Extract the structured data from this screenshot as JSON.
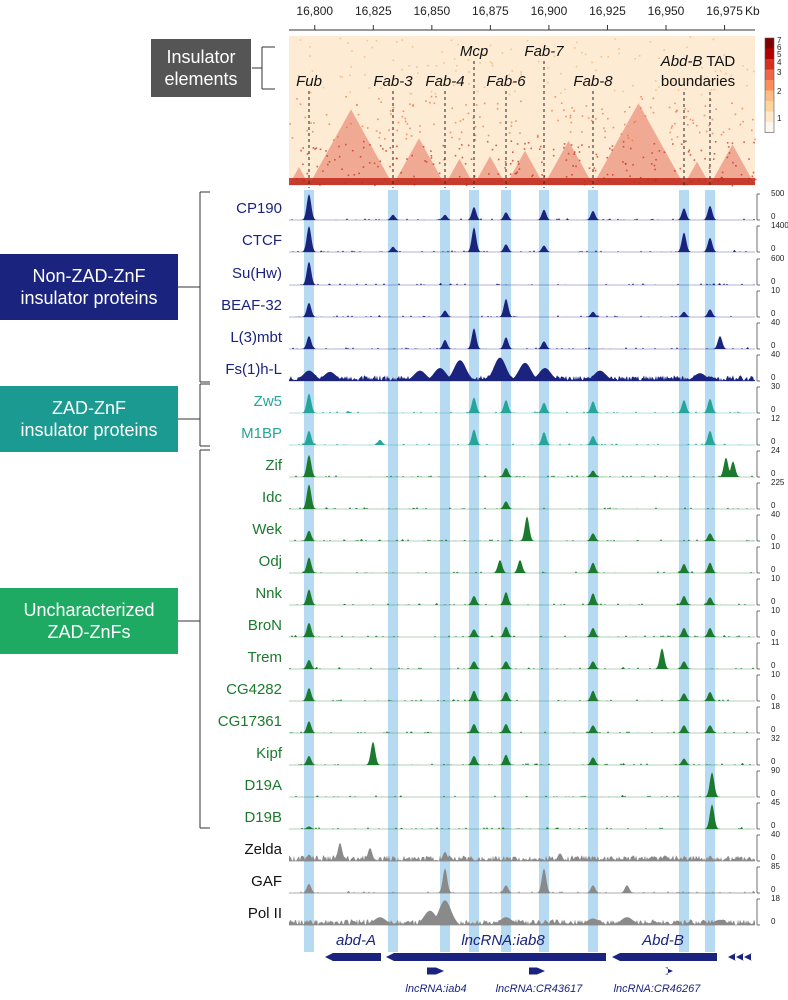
{
  "axis": {
    "unit": "Kb",
    "ticks": [
      {
        "label": "16,800",
        "value": 16800
      },
      {
        "label": "16,825",
        "value": 16825
      },
      {
        "label": "16,850",
        "value": 16850
      },
      {
        "label": "16,875",
        "value": 16875
      },
      {
        "label": "16,900",
        "value": 16900
      },
      {
        "label": "16,925",
        "value": 16925
      },
      {
        "label": "16,950",
        "value": 16950
      },
      {
        "label": "16,975",
        "value": 16975
      }
    ]
  },
  "insulator_box": {
    "label_line1": "Insulator",
    "label_line2": "elements",
    "color": "#555555"
  },
  "hic_scale": {
    "ticks": [
      "7",
      "6",
      "5",
      "4",
      "3",
      "2",
      "1"
    ]
  },
  "elements": [
    {
      "name": "Fub",
      "italic": true
    },
    {
      "name": "Fab-3",
      "italic": true
    },
    {
      "name": "Fab-4",
      "italic": true
    },
    {
      "name": "Mcp",
      "italic": true
    },
    {
      "name": "Fab-6",
      "italic": true
    },
    {
      "name": "Fab-7",
      "italic": true
    },
    {
      "name": "Fab-8",
      "italic": true
    }
  ],
  "tad_label": {
    "gene": "Abd-B",
    "rest": " TAD",
    "line2": "boundaries"
  },
  "groups": [
    {
      "id": "non-zad",
      "line1": "Non-ZAD-ZnF",
      "line2": "insulator proteins",
      "color": "#1a237e"
    },
    {
      "id": "zad",
      "line1": "ZAD-ZnF",
      "line2": "insulator proteins",
      "color": "#1a9a90"
    },
    {
      "id": "uncharacterized",
      "line1": "Uncharacterized",
      "line2": "ZAD-ZnFs",
      "color": "#1faa63"
    }
  ],
  "tracks": [
    {
      "name": "CP190",
      "max": "500",
      "min": "0",
      "color": "#1a237e"
    },
    {
      "name": "CTCF",
      "max": "1400",
      "min": "0",
      "color": "#1a237e"
    },
    {
      "name": "Su(Hw)",
      "max": "600",
      "min": "0",
      "color": "#1a237e"
    },
    {
      "name": "BEAF-32",
      "max": "10",
      "min": "0",
      "color": "#1a237e"
    },
    {
      "name": "L(3)mbt",
      "max": "40",
      "min": "0",
      "color": "#1a237e"
    },
    {
      "name": "Fs(1)h-L",
      "max": "40",
      "min": "0",
      "color": "#1a237e"
    },
    {
      "name": "Zw5",
      "max": "30",
      "min": "0",
      "color": "#26a69a"
    },
    {
      "name": "M1BP",
      "max": "12",
      "min": "0",
      "color": "#26a69a"
    },
    {
      "name": "Zif",
      "max": "24",
      "min": "0",
      "color": "#1b7a2e"
    },
    {
      "name": "Idc",
      "max": "225",
      "min": "0",
      "color": "#1b7a2e"
    },
    {
      "name": "Wek",
      "max": "40",
      "min": "0",
      "color": "#1b7a2e"
    },
    {
      "name": "Odj",
      "max": "10",
      "min": "0",
      "color": "#1b7a2e"
    },
    {
      "name": "Nnk",
      "max": "10",
      "min": "0",
      "color": "#1b7a2e"
    },
    {
      "name": "BroN",
      "max": "10",
      "min": "0",
      "color": "#1b7a2e"
    },
    {
      "name": "Trem",
      "max": "11",
      "min": "0",
      "color": "#1b7a2e"
    },
    {
      "name": "CG4282",
      "max": "10",
      "min": "0",
      "color": "#1b7a2e"
    },
    {
      "name": "CG17361",
      "max": "18",
      "min": "0",
      "color": "#1b7a2e"
    },
    {
      "name": "Kipf",
      "max": "32",
      "min": "0",
      "color": "#1b7a2e"
    },
    {
      "name": "D19A",
      "max": "90",
      "min": "0",
      "color": "#1b7a2e"
    },
    {
      "name": "D19B",
      "max": "45",
      "min": "0",
      "color": "#1b7a2e"
    },
    {
      "name": "Zelda",
      "max": "40",
      "min": "0",
      "color": "#111111"
    },
    {
      "name": "GAF",
      "max": "85",
      "min": "0",
      "color": "#111111"
    },
    {
      "name": "Pol II",
      "max": "18",
      "min": "0",
      "color": "#111111"
    }
  ],
  "genes": [
    {
      "name": "abd-A",
      "italic": true,
      "row": "main"
    },
    {
      "name": "lncRNA:iab8",
      "italic": true,
      "row": "main"
    },
    {
      "name": "Abd-B",
      "italic": true,
      "row": "main"
    },
    {
      "name": "lncRNA:iab4",
      "italic": true,
      "row": "small"
    },
    {
      "name": "lncRNA:CR43617",
      "italic": true,
      "row": "small"
    },
    {
      "name": "lncRNA:CR46267",
      "italic": true,
      "row": "small"
    }
  ],
  "colors": {
    "highlight": "#a8d4ee",
    "gene": "#1a237e",
    "hic": "#d7301f",
    "hic_light": "#fdebd3"
  }
}
